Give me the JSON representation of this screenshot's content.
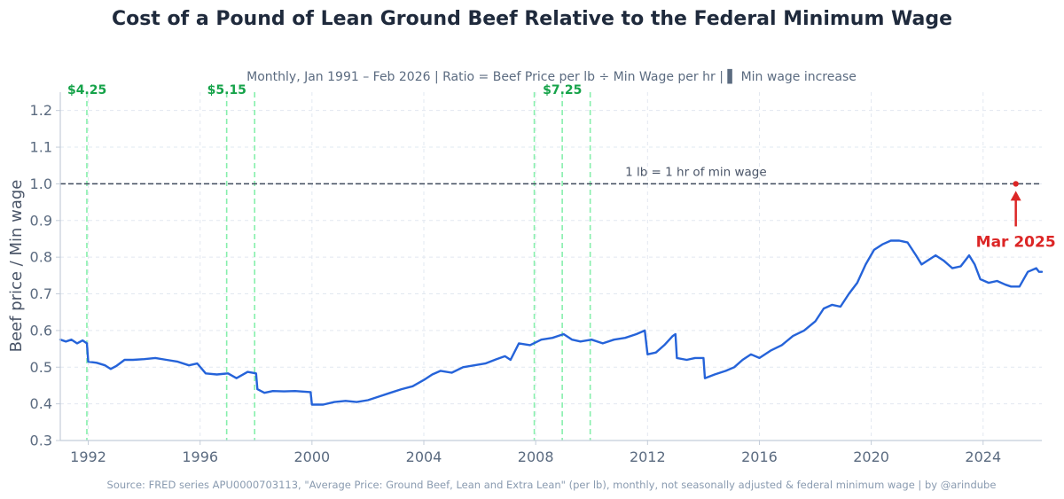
{
  "chart_data": {
    "type": "line",
    "title": "Cost of a Pound of Lean Ground Beef Relative to the Federal Minimum Wage",
    "subtitle": "Monthly, Jan 1991 – Feb 2026  |  Ratio = Beef Price per lb ÷ Min Wage per hr  |  ▌ Min wage increase",
    "ylabel": "Beef price / Min wage",
    "xlabel": "",
    "xlim": [
      1991.0,
      2026.1
    ],
    "ylim": [
      0.3,
      1.25
    ],
    "x_ticks": [
      1992,
      1996,
      2000,
      2004,
      2008,
      2012,
      2016,
      2020,
      2024
    ],
    "y_ticks": [
      0.3,
      0.4,
      0.5,
      0.6,
      0.7,
      0.8,
      0.9,
      1.0,
      1.1,
      1.2
    ],
    "y_tick_labels": [
      "0.3",
      "0.4",
      "0.5",
      "0.6",
      "0.7",
      "0.8",
      "0.9",
      "1.0",
      "1.1",
      "1.2"
    ],
    "grid": true,
    "series": [
      {
        "color": "#2563d9",
        "points": [
          [
            1991.0,
            0.575
          ],
          [
            1991.2,
            0.57
          ],
          [
            1991.4,
            0.575
          ],
          [
            1991.6,
            0.565
          ],
          [
            1991.8,
            0.573
          ],
          [
            1991.95,
            0.565
          ],
          [
            1992.0,
            0.515
          ],
          [
            1992.3,
            0.512
          ],
          [
            1992.6,
            0.505
          ],
          [
            1992.8,
            0.495
          ],
          [
            1993.0,
            0.503
          ],
          [
            1993.3,
            0.52
          ],
          [
            1993.6,
            0.52
          ],
          [
            1994.0,
            0.522
          ],
          [
            1994.4,
            0.525
          ],
          [
            1994.8,
            0.52
          ],
          [
            1995.2,
            0.515
          ],
          [
            1995.6,
            0.505
          ],
          [
            1995.9,
            0.51
          ],
          [
            1996.2,
            0.483
          ],
          [
            1996.6,
            0.48
          ],
          [
            1997.0,
            0.483
          ],
          [
            1997.3,
            0.47
          ],
          [
            1997.7,
            0.487
          ],
          [
            1998.0,
            0.483
          ],
          [
            1998.05,
            0.44
          ],
          [
            1998.3,
            0.43
          ],
          [
            1998.6,
            0.435
          ],
          [
            1999.0,
            0.434
          ],
          [
            1999.4,
            0.435
          ],
          [
            1999.95,
            0.432
          ],
          [
            2000.0,
            0.398
          ],
          [
            2000.4,
            0.398
          ],
          [
            2000.8,
            0.405
          ],
          [
            2001.2,
            0.408
          ],
          [
            2001.6,
            0.405
          ],
          [
            2002.0,
            0.41
          ],
          [
            2002.4,
            0.42
          ],
          [
            2002.8,
            0.43
          ],
          [
            2003.2,
            0.44
          ],
          [
            2003.6,
            0.448
          ],
          [
            2004.0,
            0.465
          ],
          [
            2004.3,
            0.48
          ],
          [
            2004.6,
            0.49
          ],
          [
            2005.0,
            0.485
          ],
          [
            2005.4,
            0.5
          ],
          [
            2005.8,
            0.505
          ],
          [
            2006.2,
            0.51
          ],
          [
            2006.6,
            0.522
          ],
          [
            2006.9,
            0.53
          ],
          [
            2007.1,
            0.52
          ],
          [
            2007.4,
            0.565
          ],
          [
            2007.8,
            0.56
          ],
          [
            2008.2,
            0.575
          ],
          [
            2008.6,
            0.58
          ],
          [
            2009.0,
            0.59
          ],
          [
            2009.3,
            0.575
          ],
          [
            2009.6,
            0.57
          ],
          [
            2010.0,
            0.575
          ],
          [
            2010.4,
            0.565
          ],
          [
            2010.8,
            0.575
          ],
          [
            2011.2,
            0.58
          ],
          [
            2011.6,
            0.59
          ],
          [
            2011.9,
            0.6
          ],
          [
            2012.0,
            0.535
          ],
          [
            2012.3,
            0.54
          ],
          [
            2012.6,
            0.56
          ],
          [
            2012.9,
            0.585
          ],
          [
            2013.0,
            0.59
          ],
          [
            2013.05,
            0.525
          ],
          [
            2013.4,
            0.52
          ],
          [
            2013.7,
            0.525
          ],
          [
            2014.0,
            0.525
          ],
          [
            2014.05,
            0.47
          ],
          [
            2014.4,
            0.48
          ],
          [
            2014.8,
            0.49
          ],
          [
            2015.1,
            0.5
          ],
          [
            2015.4,
            0.52
          ],
          [
            2015.7,
            0.535
          ],
          [
            2016.0,
            0.525
          ],
          [
            2016.4,
            0.545
          ],
          [
            2016.8,
            0.56
          ],
          [
            2017.2,
            0.585
          ],
          [
            2017.6,
            0.6
          ],
          [
            2018.0,
            0.625
          ],
          [
            2018.3,
            0.66
          ],
          [
            2018.6,
            0.67
          ],
          [
            2018.9,
            0.665
          ],
          [
            2019.2,
            0.7
          ],
          [
            2019.5,
            0.73
          ],
          [
            2019.8,
            0.78
          ],
          [
            2020.1,
            0.82
          ],
          [
            2020.4,
            0.835
          ],
          [
            2020.7,
            0.845
          ],
          [
            2021.0,
            0.845
          ],
          [
            2021.3,
            0.84
          ],
          [
            2021.6,
            0.805
          ],
          [
            2021.8,
            0.78
          ],
          [
            2022.0,
            0.79
          ],
          [
            2022.3,
            0.805
          ],
          [
            2022.6,
            0.79
          ],
          [
            2022.9,
            0.77
          ],
          [
            2023.2,
            0.775
          ],
          [
            2023.5,
            0.805
          ],
          [
            2023.7,
            0.78
          ],
          [
            2023.9,
            0.74
          ],
          [
            2024.2,
            0.73
          ],
          [
            2024.5,
            0.735
          ],
          [
            2024.8,
            0.725
          ],
          [
            2025.0,
            0.72
          ],
          [
            2025.3,
            0.72
          ],
          [
            2025.6,
            0.76
          ],
          [
            2025.9,
            0.77
          ],
          [
            2026.0,
            0.76
          ],
          [
            2026.1,
            0.76
          ]
        ]
      }
    ],
    "min_wage_increases": [
      {
        "x": 1991.95,
        "label": "$4.25"
      },
      {
        "x": 1996.95,
        "label": "$5.15"
      },
      {
        "x": 1997.95,
        "label": ""
      },
      {
        "x": 2007.95,
        "label": ""
      },
      {
        "x": 2008.95,
        "label": "$7.25"
      },
      {
        "x": 2009.95,
        "label": ""
      }
    ],
    "reference_line": {
      "y": 1.0,
      "label": "1 lb = 1 hr of min wage"
    },
    "annotation": {
      "x": 2025.17,
      "y": 1.0,
      "label": "Mar 2025"
    }
  },
  "footer": {
    "source": "Source: FRED series APU0000703113, \"Average Price: Ground Beef, Lean and Extra Lean\" (per lb), monthly, not seasonally adjusted & federal minimum wage  |  by @arindube"
  }
}
